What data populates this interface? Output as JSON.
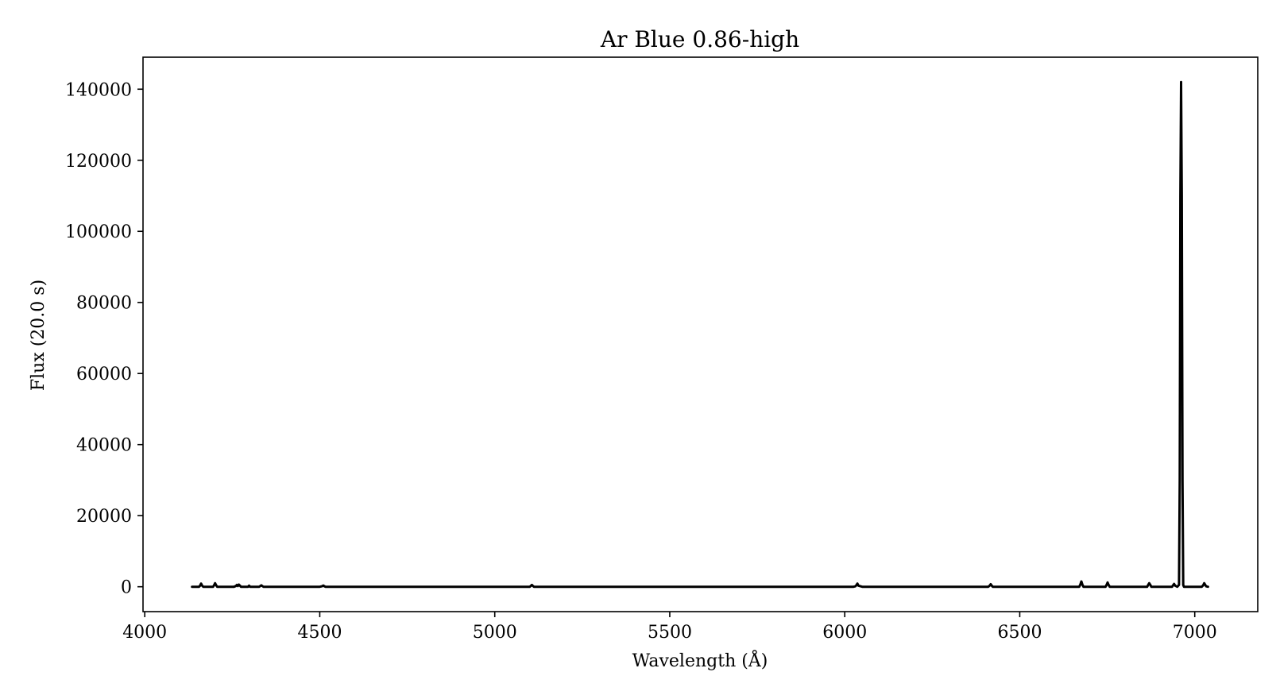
{
  "chart_data": {
    "type": "line",
    "title": "Ar Blue 0.86-high",
    "xlabel": "Wavelength (Å)",
    "ylabel": "Flux (20.0 s)",
    "xlim": [
      3995,
      7180
    ],
    "ylim": [
      -7000,
      149000
    ],
    "xticks": [
      4000,
      4500,
      5000,
      5500,
      6000,
      6500,
      7000
    ],
    "yticks": [
      0,
      20000,
      40000,
      60000,
      80000,
      100000,
      120000,
      140000
    ],
    "grid": false,
    "legend": "none",
    "line_color": "#000000",
    "series": [
      {
        "x": [
          4135,
          4155,
          4158,
          4161,
          4164,
          4167,
          4195,
          4198,
          4201,
          4204,
          4207,
          4255,
          4260,
          4263,
          4266,
          4269,
          4272,
          4275,
          4280,
          4295,
          4298,
          4301,
          4304,
          4327,
          4330,
          4333,
          4336,
          4339,
          4500,
          4507,
          4510,
          4513,
          4516,
          5100,
          5103,
          5106,
          5109,
          5112,
          6025,
          6030,
          6033,
          6036,
          6039,
          6050,
          6410,
          6414,
          6417,
          6420,
          6423,
          6670,
          6673,
          6676,
          6679,
          6682,
          6745,
          6748,
          6751,
          6754,
          6757,
          6864,
          6867,
          6870,
          6873,
          6876,
          6935,
          6938,
          6941,
          6944,
          6950,
          6955,
          6957,
          6959,
          6961,
          6963,
          6965,
          6967,
          6969,
          6971,
          6973,
          7000,
          7020,
          7024,
          7027,
          7030,
          7033,
          7038
        ],
        "y": [
          0,
          0,
          300,
          900,
          300,
          0,
          0,
          400,
          1000,
          400,
          0,
          0,
          200,
          500,
          200,
          600,
          300,
          0,
          0,
          0,
          300,
          0,
          0,
          0,
          200,
          400,
          200,
          0,
          0,
          150,
          350,
          150,
          0,
          0,
          250,
          500,
          250,
          0,
          0,
          100,
          400,
          900,
          300,
          0,
          0,
          300,
          700,
          300,
          0,
          0,
          600,
          1500,
          600,
          0,
          0,
          500,
          1200,
          500,
          0,
          0,
          500,
          1000,
          500,
          0,
          0,
          400,
          800,
          300,
          0,
          500,
          30000,
          110000,
          142000,
          110000,
          30000,
          500,
          0,
          0,
          0,
          0,
          0,
          400,
          1000,
          500,
          100,
          0
        ]
      }
    ]
  }
}
